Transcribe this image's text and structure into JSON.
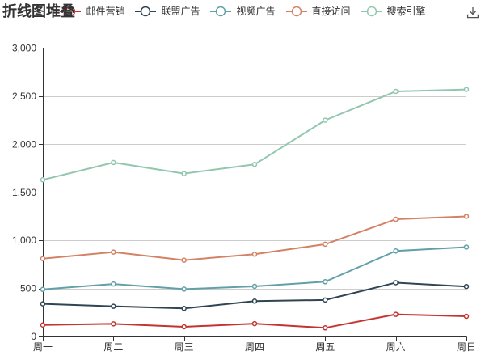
{
  "title": {
    "text": "折线图堆叠"
  },
  "toolbox": {
    "icon": "download-icon",
    "color": "#545454"
  },
  "legend": {
    "position": "top-center",
    "items": [
      {
        "label": "邮件营销",
        "color": "#c23531"
      },
      {
        "label": "联盟广告",
        "color": "#2f4554"
      },
      {
        "label": "视频广告",
        "color": "#61a0a8"
      },
      {
        "label": "直接访问",
        "color": "#d48265"
      },
      {
        "label": "搜索引擎",
        "color": "#91c7ae"
      }
    ]
  },
  "chart_data": {
    "type": "line",
    "title": "折线图堆叠",
    "categories": [
      "周一",
      "周二",
      "周三",
      "周四",
      "周五",
      "周六",
      "周日"
    ],
    "xlabel": "",
    "ylabel": "",
    "ylim": [
      0,
      3000
    ],
    "ytick_interval": 500,
    "ytick_labels": [
      "0",
      "500",
      "1,000",
      "1,500",
      "2,000",
      "2,500",
      "3,000"
    ],
    "grid": true,
    "legend_position": "top",
    "note": "stacked line chart; series values are the plotted cumulative y-positions read off the axis",
    "series": [
      {
        "name": "邮件营销",
        "color": "#c23531",
        "values": [
          120,
          132,
          101,
          134,
          90,
          230,
          210
        ]
      },
      {
        "name": "联盟广告",
        "color": "#2f4554",
        "values": [
          340,
          314,
          292,
          368,
          380,
          560,
          520
        ]
      },
      {
        "name": "视频广告",
        "color": "#61a0a8",
        "values": [
          490,
          546,
          493,
          522,
          570,
          890,
          930
        ]
      },
      {
        "name": "直接访问",
        "color": "#d48265",
        "values": [
          810,
          878,
          794,
          856,
          960,
          1220,
          1250
        ]
      },
      {
        "name": "搜索引擎",
        "color": "#91c7ae",
        "values": [
          1630,
          1810,
          1695,
          1790,
          2250,
          2550,
          2570
        ]
      }
    ],
    "axis_color": "#333333",
    "gridline_color": "#cccccc",
    "marker": "empty-circle"
  }
}
